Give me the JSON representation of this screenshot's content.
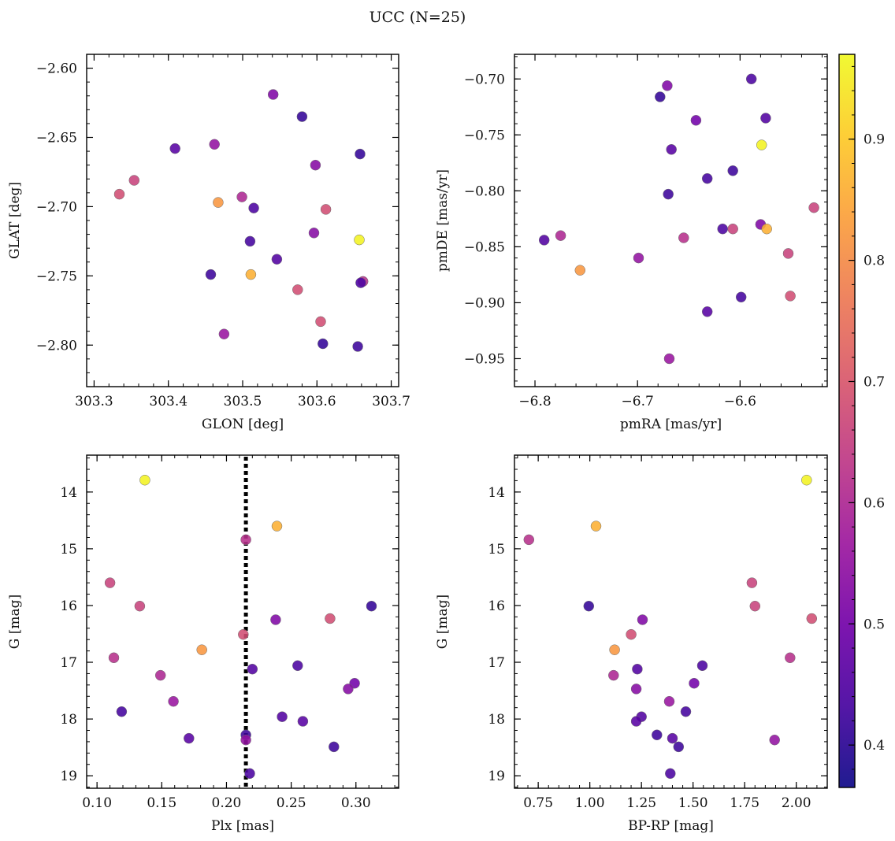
{
  "figure": {
    "title": "UCC (N=25)"
  },
  "colormap": {
    "name": "plasma",
    "range": [
      0.365,
      0.97
    ],
    "ticks": [
      0.4,
      0.5,
      0.6,
      0.7,
      0.8,
      0.9
    ],
    "tick_labels": [
      "0.4",
      "0.5",
      "0.6",
      "0.7",
      "0.8",
      "0.9"
    ],
    "stops": [
      "#0d0887",
      "#46039f",
      "#7201a8",
      "#9c179e",
      "#bd3786",
      "#d8576b",
      "#ed7953",
      "#fb9f3a",
      "#fdca26",
      "#f0f921"
    ]
  },
  "chart_data": [
    {
      "id": "sky",
      "type": "scatter",
      "xlabel": "GLON [deg]",
      "ylabel": "GLAT [deg]",
      "xlim": [
        303.29,
        303.71
      ],
      "ylim": [
        -2.83,
        -2.59
      ],
      "xticks": [
        303.3,
        303.4,
        303.5,
        303.6,
        303.7
      ],
      "xtick_labels": [
        "303.3",
        "303.4",
        "303.5",
        "303.6",
        "303.7"
      ],
      "yticks": [
        -2.6,
        -2.65,
        -2.7,
        -2.75,
        -2.8
      ],
      "ytick_labels": [
        "−2.60",
        "−2.65",
        "−2.70",
        "−2.75",
        "−2.80"
      ],
      "x_minor_step": 0.02,
      "y_minor_step": 0.01,
      "invert_y": false,
      "points": [
        {
          "x": 303.541,
          "y": -2.619,
          "c": 0.52
        },
        {
          "x": 303.58,
          "y": -2.635,
          "c": 0.41
        },
        {
          "x": 303.409,
          "y": -2.658,
          "c": 0.46
        },
        {
          "x": 303.462,
          "y": -2.655,
          "c": 0.55
        },
        {
          "x": 303.658,
          "y": -2.662,
          "c": 0.41
        },
        {
          "x": 303.598,
          "y": -2.67,
          "c": 0.53
        },
        {
          "x": 303.354,
          "y": -2.681,
          "c": 0.66
        },
        {
          "x": 303.334,
          "y": -2.691,
          "c": 0.68
        },
        {
          "x": 303.499,
          "y": -2.693,
          "c": 0.6
        },
        {
          "x": 303.467,
          "y": -2.697,
          "c": 0.82
        },
        {
          "x": 303.515,
          "y": -2.701,
          "c": 0.44
        },
        {
          "x": 303.612,
          "y": -2.702,
          "c": 0.68
        },
        {
          "x": 303.596,
          "y": -2.719,
          "c": 0.53
        },
        {
          "x": 303.657,
          "y": -2.724,
          "c": 0.96
        },
        {
          "x": 303.51,
          "y": -2.725,
          "c": 0.43
        },
        {
          "x": 303.546,
          "y": -2.738,
          "c": 0.45
        },
        {
          "x": 303.457,
          "y": -2.749,
          "c": 0.42
        },
        {
          "x": 303.511,
          "y": -2.749,
          "c": 0.86
        },
        {
          "x": 303.662,
          "y": -2.754,
          "c": 0.62
        },
        {
          "x": 303.659,
          "y": -2.755,
          "c": 0.44
        },
        {
          "x": 303.574,
          "y": -2.76,
          "c": 0.68
        },
        {
          "x": 303.605,
          "y": -2.783,
          "c": 0.68
        },
        {
          "x": 303.475,
          "y": -2.792,
          "c": 0.56
        },
        {
          "x": 303.608,
          "y": -2.799,
          "c": 0.41
        },
        {
          "x": 303.655,
          "y": -2.801,
          "c": 0.42
        }
      ]
    },
    {
      "id": "pm",
      "type": "scatter",
      "xlabel": "pmRA [mas/yr]",
      "ylabel": "pmDE [mas/yr]",
      "xlim": [
        -6.82,
        -6.515
      ],
      "ylim": [
        -0.975,
        -0.678
      ],
      "xticks": [
        -6.8,
        -6.7,
        -6.6
      ],
      "xtick_labels": [
        "−6.8",
        "−6.7",
        "−6.6"
      ],
      "yticks": [
        -0.7,
        -0.75,
        -0.8,
        -0.85,
        -0.9,
        -0.95
      ],
      "ytick_labels": [
        "−0.70",
        "−0.75",
        "−0.80",
        "−0.85",
        "−0.90",
        "−0.95"
      ],
      "x_minor_step": 0.02,
      "y_minor_step": 0.01,
      "invert_y": false,
      "points": [
        {
          "x": -6.589,
          "y": -0.7,
          "c": 0.44
        },
        {
          "x": -6.671,
          "y": -0.706,
          "c": 0.52
        },
        {
          "x": -6.678,
          "y": -0.716,
          "c": 0.41
        },
        {
          "x": -6.575,
          "y": -0.735,
          "c": 0.45
        },
        {
          "x": -6.643,
          "y": -0.737,
          "c": 0.5
        },
        {
          "x": -6.579,
          "y": -0.759,
          "c": 0.96
        },
        {
          "x": -6.667,
          "y": -0.763,
          "c": 0.46
        },
        {
          "x": -6.607,
          "y": -0.782,
          "c": 0.42
        },
        {
          "x": -6.632,
          "y": -0.789,
          "c": 0.43
        },
        {
          "x": -6.67,
          "y": -0.803,
          "c": 0.42
        },
        {
          "x": -6.528,
          "y": -0.815,
          "c": 0.66
        },
        {
          "x": -6.58,
          "y": -0.83,
          "c": 0.52
        },
        {
          "x": -6.617,
          "y": -0.834,
          "c": 0.44
        },
        {
          "x": -6.607,
          "y": -0.834,
          "c": 0.66
        },
        {
          "x": -6.574,
          "y": -0.834,
          "c": 0.86
        },
        {
          "x": -6.775,
          "y": -0.84,
          "c": 0.6
        },
        {
          "x": -6.655,
          "y": -0.842,
          "c": 0.62
        },
        {
          "x": -6.791,
          "y": -0.844,
          "c": 0.45
        },
        {
          "x": -6.553,
          "y": -0.856,
          "c": 0.66
        },
        {
          "x": -6.699,
          "y": -0.86,
          "c": 0.55
        },
        {
          "x": -6.756,
          "y": -0.871,
          "c": 0.82
        },
        {
          "x": -6.551,
          "y": -0.894,
          "c": 0.68
        },
        {
          "x": -6.599,
          "y": -0.895,
          "c": 0.43
        },
        {
          "x": -6.632,
          "y": -0.908,
          "c": 0.46
        },
        {
          "x": -6.669,
          "y": -0.95,
          "c": 0.56
        }
      ]
    },
    {
      "id": "plx",
      "type": "scatter",
      "xlabel": "Plx [mas]",
      "ylabel": "G [mag]",
      "xlim": [
        0.092,
        0.333
      ],
      "ylim": [
        13.35,
        19.22
      ],
      "xticks": [
        0.1,
        0.15,
        0.2,
        0.25,
        0.3
      ],
      "xtick_labels": [
        "0.10",
        "0.15",
        "0.20",
        "0.25",
        "0.30"
      ],
      "yticks": [
        14,
        15,
        16,
        17,
        18,
        19
      ],
      "ytick_labels": [
        "14",
        "15",
        "16",
        "17",
        "18",
        "19"
      ],
      "x_minor_step": 0.01,
      "y_minor_step": 0.2,
      "invert_y": true,
      "vline": 0.215,
      "points": [
        {
          "x": 0.137,
          "y": 13.79,
          "c": 0.96
        },
        {
          "x": 0.239,
          "y": 14.6,
          "c": 0.86
        },
        {
          "x": 0.215,
          "y": 14.84,
          "c": 0.62
        },
        {
          "x": 0.11,
          "y": 15.6,
          "c": 0.66
        },
        {
          "x": 0.133,
          "y": 16.01,
          "c": 0.66
        },
        {
          "x": 0.312,
          "y": 16.01,
          "c": 0.41
        },
        {
          "x": 0.28,
          "y": 16.23,
          "c": 0.68
        },
        {
          "x": 0.238,
          "y": 16.25,
          "c": 0.52
        },
        {
          "x": 0.213,
          "y": 16.51,
          "c": 0.68
        },
        {
          "x": 0.181,
          "y": 16.78,
          "c": 0.82
        },
        {
          "x": 0.113,
          "y": 16.92,
          "c": 0.62
        },
        {
          "x": 0.255,
          "y": 17.06,
          "c": 0.44
        },
        {
          "x": 0.22,
          "y": 17.12,
          "c": 0.45
        },
        {
          "x": 0.149,
          "y": 17.23,
          "c": 0.6
        },
        {
          "x": 0.299,
          "y": 17.37,
          "c": 0.5
        },
        {
          "x": 0.294,
          "y": 17.47,
          "c": 0.53
        },
        {
          "x": 0.159,
          "y": 17.69,
          "c": 0.56
        },
        {
          "x": 0.119,
          "y": 17.87,
          "c": 0.43
        },
        {
          "x": 0.243,
          "y": 17.96,
          "c": 0.45
        },
        {
          "x": 0.259,
          "y": 18.04,
          "c": 0.46
        },
        {
          "x": 0.215,
          "y": 18.28,
          "c": 0.42
        },
        {
          "x": 0.171,
          "y": 18.34,
          "c": 0.46
        },
        {
          "x": 0.215,
          "y": 18.37,
          "c": 0.55
        },
        {
          "x": 0.283,
          "y": 18.49,
          "c": 0.42
        },
        {
          "x": 0.218,
          "y": 18.96,
          "c": 0.44
        }
      ]
    },
    {
      "id": "cmd",
      "type": "scatter",
      "xlabel": "BP-RP [mag]",
      "ylabel": "G [mag]",
      "xlim": [
        0.635,
        2.15
      ],
      "ylim": [
        13.35,
        19.22
      ],
      "xticks": [
        0.75,
        1.0,
        1.25,
        1.5,
        1.75,
        2.0
      ],
      "xtick_labels": [
        "0.75",
        "1.00",
        "1.25",
        "1.50",
        "1.75",
        "2.00"
      ],
      "yticks": [
        14,
        15,
        16,
        17,
        18,
        19
      ],
      "ytick_labels": [
        "14",
        "15",
        "16",
        "17",
        "18",
        "19"
      ],
      "x_minor_step": 0.05,
      "y_minor_step": 0.2,
      "invert_y": true,
      "points": [
        {
          "x": 2.05,
          "y": 13.79,
          "c": 0.96
        },
        {
          "x": 1.03,
          "y": 14.6,
          "c": 0.86
        },
        {
          "x": 0.705,
          "y": 14.84,
          "c": 0.62
        },
        {
          "x": 0.995,
          "y": 16.01,
          "c": 0.41
        },
        {
          "x": 1.785,
          "y": 15.6,
          "c": 0.66
        },
        {
          "x": 1.8,
          "y": 16.01,
          "c": 0.66
        },
        {
          "x": 2.075,
          "y": 16.23,
          "c": 0.68
        },
        {
          "x": 1.255,
          "y": 16.25,
          "c": 0.52
        },
        {
          "x": 1.2,
          "y": 16.51,
          "c": 0.68
        },
        {
          "x": 1.12,
          "y": 16.78,
          "c": 0.82
        },
        {
          "x": 1.97,
          "y": 16.92,
          "c": 0.62
        },
        {
          "x": 1.545,
          "y": 17.06,
          "c": 0.44
        },
        {
          "x": 1.23,
          "y": 17.12,
          "c": 0.45
        },
        {
          "x": 1.115,
          "y": 17.23,
          "c": 0.6
        },
        {
          "x": 1.505,
          "y": 17.37,
          "c": 0.5
        },
        {
          "x": 1.225,
          "y": 17.47,
          "c": 0.53
        },
        {
          "x": 1.385,
          "y": 17.69,
          "c": 0.56
        },
        {
          "x": 1.465,
          "y": 17.87,
          "c": 0.43
        },
        {
          "x": 1.25,
          "y": 17.96,
          "c": 0.45
        },
        {
          "x": 1.225,
          "y": 18.04,
          "c": 0.46
        },
        {
          "x": 1.325,
          "y": 18.28,
          "c": 0.42
        },
        {
          "x": 1.4,
          "y": 18.34,
          "c": 0.46
        },
        {
          "x": 1.895,
          "y": 18.37,
          "c": 0.55
        },
        {
          "x": 1.43,
          "y": 18.49,
          "c": 0.42
        },
        {
          "x": 1.39,
          "y": 18.96,
          "c": 0.44
        }
      ]
    }
  ]
}
